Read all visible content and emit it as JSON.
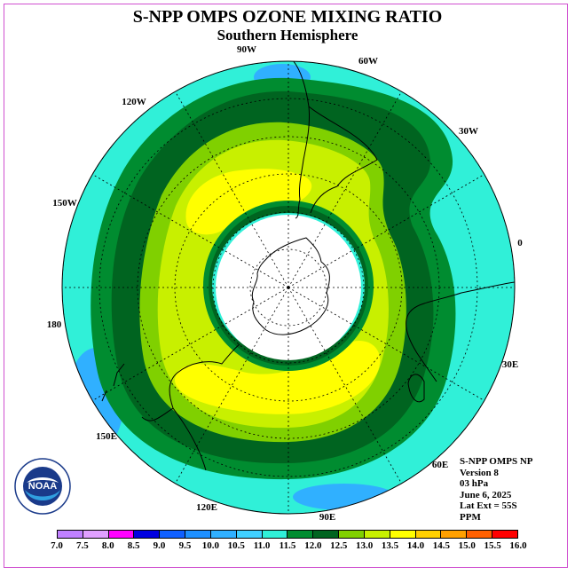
{
  "title": "S-NPP OMPS OZONE MIXING RATIO",
  "subtitle": "Southern Hemisphere",
  "longitude_labels": [
    "90W",
    "60W",
    "30W",
    "0",
    "30E",
    "60E",
    "90E",
    "120E",
    "150E",
    "180",
    "150W",
    "120W"
  ],
  "info_lines": [
    "S-NPP OMPS NP",
    "Version 8",
    "03 hPa",
    "June 6, 2025",
    "Lat Ext = 55S",
    "PPM"
  ],
  "logo": {
    "text": "NOAA",
    "ring_text": "NATIONAL OCEANIC AND ATMOSPHERIC ADMINISTRATION • U.S. DEPARTMENT OF COMMERCE"
  },
  "colorbar": {
    "labels": [
      "7.0",
      "7.5",
      "8.0",
      "8.5",
      "9.0",
      "9.5",
      "10.0",
      "10.5",
      "11.0",
      "11.5",
      "12.0",
      "12.5",
      "13.0",
      "13.5",
      "14.0",
      "14.5",
      "15.0",
      "15.5",
      "16.0"
    ],
    "colors": [
      "#c080ff",
      "#e0a0ff",
      "#ff00ff",
      "#0000e0",
      "#1060ff",
      "#1e90ff",
      "#30b0ff",
      "#40d0ff",
      "#30f0d8",
      "#008c30",
      "#006420",
      "#80d000",
      "#c8f000",
      "#ffff00",
      "#ffd000",
      "#ffa000",
      "#ff6000",
      "#ff0000",
      "#8b5a2b"
    ]
  },
  "field_colors": {
    "ocean_background": "#30f0d8",
    "dark_green": "#006420",
    "green": "#008c30",
    "light_green": "#80d000",
    "yellow_green": "#c8f000",
    "yellow": "#ffff00",
    "blue": "#30b0ff",
    "missing": "#ffffff"
  }
}
